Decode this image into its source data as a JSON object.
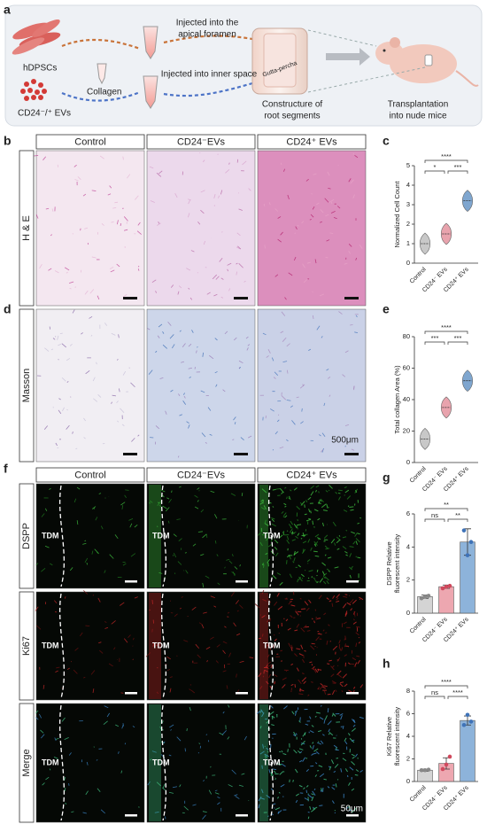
{
  "panel_letters": [
    "a",
    "b",
    "c",
    "d",
    "e",
    "f",
    "g",
    "h"
  ],
  "schematic": {
    "cells": "hDPSCs",
    "evs": "CD24⁻/⁺ EVs",
    "collagen": "Collagen",
    "step1": [
      "Injected into the",
      "apical foramen"
    ],
    "step2": "Injected into inner space",
    "gutta": "Gutta-percha",
    "step3": [
      "Constructure of",
      "root segments"
    ],
    "step4": [
      "Transplantation",
      "into nude mice"
    ]
  },
  "histology": {
    "columns": [
      "Control",
      "CD24⁻EVs",
      "CD24⁺ EVs"
    ],
    "rows": [
      "H & E",
      "Masson"
    ],
    "scale": "500μm"
  },
  "fluorescence": {
    "columns": [
      "Control",
      "CD24⁻EVs",
      "CD24⁺ EVs"
    ],
    "rows": [
      "DSPP",
      "Ki67",
      "Merge"
    ],
    "region_labels": [
      "TDM",
      "TDM",
      "TDM",
      "TDM",
      "TDM",
      "TDM",
      "TDM",
      "TDM",
      "TDM"
    ],
    "scale": "50μm"
  },
  "chart_data": [
    {
      "type": "violin",
      "ylabel": [
        "Normalized Cell Count"
      ],
      "categories": [
        "Control",
        "CD24⁻ EVs",
        "CD24⁺ EVs"
      ],
      "values": [
        1.0,
        1.5,
        3.2
      ],
      "colors": [
        "#c8c8c8",
        "#e8a3ad",
        "#7fa6cf"
      ],
      "ylim": [
        0,
        5
      ],
      "yticks": [
        0,
        1,
        2,
        3,
        4,
        5
      ],
      "significance": [
        "****",
        "*",
        "***"
      ]
    },
    {
      "type": "violin",
      "ylabel": [
        "Total collagen Area (%)"
      ],
      "categories": [
        "Control",
        "CD24⁻ EVs",
        "CD24⁺ EVs"
      ],
      "values": [
        15,
        35,
        52
      ],
      "colors": [
        "#c8c8c8",
        "#e8a3ad",
        "#7fa6cf"
      ],
      "ylim": [
        0,
        80
      ],
      "yticks": [
        0,
        20,
        40,
        60,
        80
      ],
      "significance": [
        "****",
        "***",
        "***"
      ]
    },
    {
      "type": "bar",
      "ylabel": [
        "DSPP Relative",
        "fluorescent intensity"
      ],
      "categories": [
        "Control",
        "CD24⁻ EVs",
        "CD24⁺ EVs"
      ],
      "values": [
        1.0,
        1.6,
        4.3
      ],
      "errors": [
        0.1,
        0.1,
        0.8
      ],
      "points": [
        [
          0.9,
          1.0,
          1.05
        ],
        [
          1.5,
          1.6,
          1.65
        ],
        [
          5.0,
          3.5,
          4.3
        ]
      ],
      "colors": [
        "#d4d4d4",
        "#eda7b0",
        "#8db3da"
      ],
      "ylim": [
        0,
        6
      ],
      "yticks": [
        0,
        2,
        4,
        6
      ],
      "significance": [
        "**",
        "ns",
        "**"
      ]
    },
    {
      "type": "bar",
      "ylabel": [
        "Ki67 Relative",
        "fluorescent intensity"
      ],
      "categories": [
        "Control",
        "CD24⁻ EVs",
        "CD24⁺ EVs"
      ],
      "values": [
        1.0,
        1.6,
        5.4
      ],
      "errors": [
        0.1,
        0.5,
        0.4
      ],
      "points": [
        [
          1.0,
          1.0,
          1.05
        ],
        [
          1.1,
          1.5,
          2.2
        ],
        [
          5.0,
          5.9,
          5.3
        ]
      ],
      "colors": [
        "#d4d4d4",
        "#eda7b0",
        "#8db3da"
      ],
      "ylim": [
        0,
        8
      ],
      "yticks": [
        0,
        2,
        4,
        6,
        8
      ],
      "significance": [
        "****",
        "ns",
        "****"
      ]
    }
  ]
}
